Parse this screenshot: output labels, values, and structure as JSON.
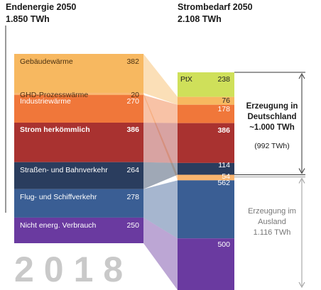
{
  "left_header": {
    "title": "Endenergie 2050",
    "total": "1.850 TWh"
  },
  "right_header": {
    "title": "Strombedarf 2050",
    "total": "2.108 TWh"
  },
  "watermark_year": "2018",
  "annotations": {
    "domestic": {
      "line1": "Erzeugung in",
      "line2": "Deutschland",
      "line3": "~1.000 TWh",
      "sub": "(992 TWh)"
    },
    "abroad": {
      "line1": "Erzeugung im",
      "line2": "Ausland",
      "line3": "1.116 TWh"
    }
  },
  "colors": {
    "gebaeude": "#f7b860",
    "ghd": "#f9b46e",
    "industrie": "#f0773a",
    "strom": "#a93230",
    "strasse": "#2a3d5e",
    "flug": "#3a5e94",
    "nichtenerg": "#6a3aa0",
    "ptx": "#cfe05a"
  },
  "chart_data": {
    "type": "sankey",
    "unit": "TWh",
    "left_total": 1850,
    "right_total": 2108,
    "left_nodes": [
      {
        "id": "gebaeude",
        "label": "Gebäudewärme",
        "value": 382
      },
      {
        "id": "ghd",
        "label": "GHD-Prozesswärme",
        "value": 20
      },
      {
        "id": "industrie",
        "label": "Industriewärme",
        "value": 270
      },
      {
        "id": "strom",
        "label": "Strom herkömmlich",
        "value": 386
      },
      {
        "id": "strasse",
        "label": "Straßen- und Bahnverkehr",
        "value": 264
      },
      {
        "id": "flug",
        "label": "Flug- und Schiffverkehr",
        "value": 278
      },
      {
        "id": "nichtenerg",
        "label": "Nicht energ. Verbrauch",
        "value": 250
      }
    ],
    "right_nodes": [
      {
        "id": "ptx",
        "label": "PtX",
        "value": 238
      },
      {
        "id": "gebaeude",
        "label": "",
        "value": 76
      },
      {
        "id": "industrie",
        "label": "",
        "value": 178
      },
      {
        "id": "strom",
        "label": "",
        "value": 386
      },
      {
        "id": "strasse",
        "label": "",
        "value": 114
      },
      {
        "id": "ghd",
        "label": "",
        "value": 54
      },
      {
        "id": "flug",
        "label": "",
        "value": 562
      },
      {
        "id": "nichtenerg",
        "label": "",
        "value": 500
      }
    ],
    "domestic_generation": 992,
    "abroad_generation": 1116
  }
}
